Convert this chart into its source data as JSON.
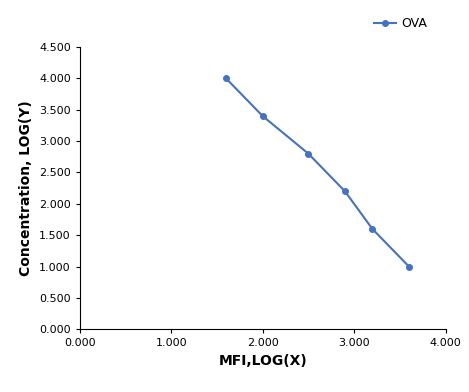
{
  "x": [
    1.6,
    2.0,
    2.5,
    2.9,
    3.2,
    3.6
  ],
  "y": [
    4.0,
    3.4,
    2.8,
    2.2,
    1.6,
    1.0
  ],
  "line_color": "#4472C4",
  "marker": "o",
  "marker_size": 4,
  "line_width": 1.5,
  "legend_label": "OVA",
  "xlabel": "MFI,LOG(X)",
  "ylabel": "Concentration, LOG(Y)",
  "xlim": [
    0.0,
    4.0
  ],
  "ylim": [
    0.0,
    4.5
  ],
  "xticks": [
    0.0,
    1.0,
    2.0,
    3.0,
    4.0
  ],
  "yticks": [
    0.0,
    0.5,
    1.0,
    1.5,
    2.0,
    2.5,
    3.0,
    3.5,
    4.0,
    4.5
  ],
  "xtick_labels": [
    "0.000",
    "1.000",
    "2.000",
    "3.000",
    "4.000"
  ],
  "ytick_labels": [
    "0.000",
    "0.500",
    "1.000",
    "1.500",
    "2.000",
    "2.500",
    "3.000",
    "3.500",
    "4.000",
    "4.500"
  ],
  "background_color": "#ffffff",
  "axis_label_fontsize": 10,
  "tick_fontsize": 8,
  "legend_fontsize": 9
}
